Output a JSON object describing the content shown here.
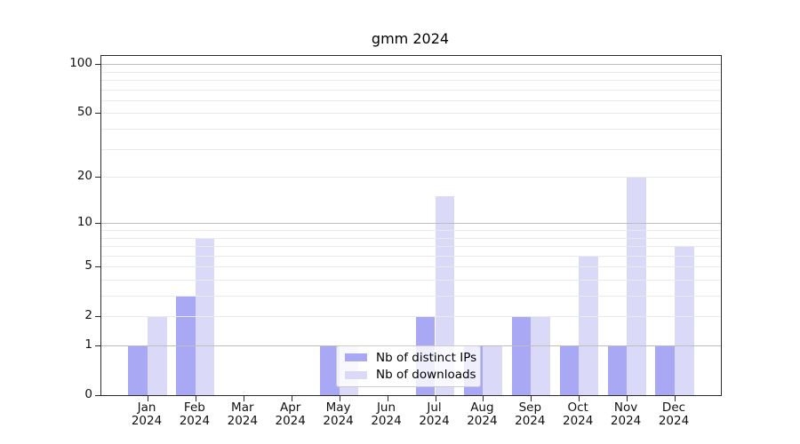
{
  "chart_data": {
    "type": "bar",
    "title": "gmm 2024",
    "categories": [
      "Jan",
      "Feb",
      "Mar",
      "Apr",
      "May",
      "Jun",
      "Jul",
      "Aug",
      "Sep",
      "Oct",
      "Nov",
      "Dec"
    ],
    "year_label": "2024",
    "series": [
      {
        "name": "Nb of distinct IPs",
        "color": "#a8a8f4",
        "values": [
          1,
          3,
          0,
          0,
          1,
          0,
          2,
          1,
          2,
          1,
          1,
          1
        ]
      },
      {
        "name": "Nb of downloads",
        "color": "#dadaf8",
        "values": [
          2,
          8,
          0,
          0,
          1,
          0,
          15,
          1,
          2,
          6,
          20,
          7
        ]
      }
    ],
    "xlabel": "",
    "ylabel": "",
    "yscale": "log1p",
    "ylim": [
      0,
      112
    ],
    "yticks": [
      0,
      1,
      2,
      5,
      10,
      20,
      50,
      100
    ],
    "grid_minor": [
      2,
      3,
      4,
      5,
      6,
      7,
      8,
      9,
      20,
      30,
      40,
      50,
      60,
      70,
      80,
      90
    ],
    "grid_major": [
      1,
      10,
      100
    ],
    "grid_on": true,
    "legend_position": "lower center",
    "colors": {
      "minor_grid": "#eaeaea",
      "major_grid": "#bdbdbd",
      "spine": "#2b2b2b"
    }
  }
}
